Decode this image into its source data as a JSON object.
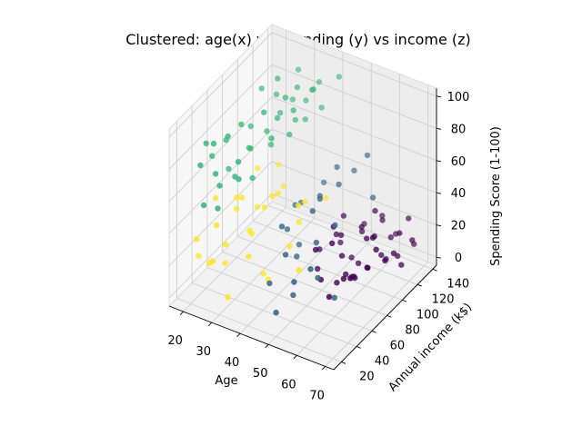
{
  "chart_data": {
    "type": "scatter",
    "projection": "3d",
    "title": "Clustered: age(x) vs spending (y) vs income (z)",
    "xlabel": "Age",
    "ylabel": "Annual income (k$)",
    "zlabel": "Spending Score (1-100)",
    "xlim": [
      15,
      73
    ],
    "ylim": [
      10,
      145
    ],
    "zlim": [
      -5,
      105
    ],
    "xticks": [
      "20",
      "30",
      "40",
      "50",
      "60",
      "70"
    ],
    "yticks": [
      "20",
      "40",
      "60",
      "80",
      "100",
      "120",
      "140"
    ],
    "zticks": [
      "0",
      "20",
      "40",
      "60",
      "80",
      "100"
    ],
    "grid": true,
    "legend": "none",
    "colors": {
      "cluster0": "#440154",
      "cluster1": "#3b6a8c",
      "cluster2": "#35b779",
      "cluster3": "#fde725"
    },
    "series": [
      {
        "cluster": 0,
        "points": [
          [
            58,
            70,
            10
          ],
          [
            62,
            75,
            14
          ],
          [
            66,
            80,
            20
          ],
          [
            60,
            85,
            8
          ],
          [
            55,
            88,
            16
          ],
          [
            63,
            92,
            12
          ],
          [
            68,
            96,
            18
          ],
          [
            52,
            98,
            22
          ],
          [
            57,
            102,
            6
          ],
          [
            64,
            106,
            14
          ],
          [
            70,
            110,
            10
          ],
          [
            60,
            112,
            20
          ],
          [
            54,
            118,
            16
          ],
          [
            66,
            120,
            8
          ],
          [
            62,
            126,
            14
          ],
          [
            58,
            130,
            20
          ],
          [
            68,
            134,
            10
          ],
          [
            56,
            137,
            18
          ],
          [
            50,
            72,
            24
          ],
          [
            48,
            82,
            6
          ],
          [
            46,
            92,
            12
          ],
          [
            65,
            138,
            22
          ],
          [
            61,
            98,
            26
          ],
          [
            53,
            108,
            4
          ],
          [
            67,
            88,
            28
          ],
          [
            59,
            78,
            12
          ],
          [
            49,
            103,
            18
          ],
          [
            63,
            116,
            6
          ],
          [
            57,
            124,
            28
          ],
          [
            69,
            128,
            16
          ],
          [
            51,
            132,
            12
          ],
          [
            55,
            75,
            30
          ],
          [
            62,
            64,
            18
          ],
          [
            58,
            60,
            6
          ],
          [
            66,
            58,
            24
          ],
          [
            54,
            64,
            12
          ],
          [
            70,
            100,
            22
          ],
          [
            47,
            120,
            20
          ],
          [
            60,
            140,
            8
          ],
          [
            64,
            95,
            30
          ],
          [
            52,
            88,
            32
          ],
          [
            68,
            115,
            26
          ],
          [
            56,
            110,
            24
          ],
          [
            48,
            112,
            8
          ],
          [
            59,
            90,
            4
          ]
        ]
      },
      {
        "cluster": 1,
        "points": [
          [
            50,
            20,
            10
          ],
          [
            55,
            25,
            30
          ],
          [
            45,
            30,
            20
          ],
          [
            60,
            28,
            40
          ],
          [
            52,
            35,
            15
          ],
          [
            48,
            40,
            35
          ],
          [
            58,
            45,
            25
          ],
          [
            44,
            50,
            45
          ],
          [
            62,
            52,
            12
          ],
          [
            54,
            58,
            38
          ],
          [
            46,
            62,
            22
          ],
          [
            50,
            68,
            50
          ],
          [
            40,
            72,
            30
          ],
          [
            56,
            75,
            42
          ],
          [
            42,
            80,
            18
          ],
          [
            48,
            85,
            48
          ],
          [
            38,
            90,
            35
          ],
          [
            52,
            95,
            55
          ],
          [
            44,
            100,
            40
          ],
          [
            36,
            105,
            28
          ],
          [
            60,
            110,
            45
          ],
          [
            46,
            115,
            52
          ],
          [
            40,
            120,
            36
          ],
          [
            54,
            125,
            60
          ],
          [
            48,
            130,
            44
          ]
        ]
      },
      {
        "cluster": 2,
        "points": [
          [
            22,
            25,
            80
          ],
          [
            26,
            30,
            75
          ],
          [
            24,
            35,
            90
          ],
          [
            28,
            28,
            70
          ],
          [
            20,
            40,
            85
          ],
          [
            30,
            45,
            78
          ],
          [
            25,
            50,
            88
          ],
          [
            32,
            38,
            72
          ],
          [
            23,
            55,
            82
          ],
          [
            27,
            60,
            92
          ],
          [
            29,
            65,
            76
          ],
          [
            35,
            70,
            84
          ],
          [
            31,
            75,
            95
          ],
          [
            25,
            80,
            80
          ],
          [
            33,
            85,
            88
          ],
          [
            28,
            90,
            74
          ],
          [
            36,
            95,
            90
          ],
          [
            30,
            100,
            82
          ],
          [
            34,
            105,
            78
          ],
          [
            26,
            110,
            86
          ],
          [
            32,
            115,
            92
          ],
          [
            29,
            120,
            80
          ],
          [
            35,
            125,
            88
          ],
          [
            31,
            130,
            76
          ],
          [
            27,
            135,
            90
          ],
          [
            33,
            140,
            84
          ],
          [
            30,
            18,
            62
          ],
          [
            24,
            22,
            58
          ],
          [
            28,
            48,
            66
          ],
          [
            34,
            92,
            98
          ],
          [
            38,
            112,
            96
          ],
          [
            22,
            62,
            60
          ],
          [
            36,
            132,
            74
          ],
          [
            32,
            56,
            64
          ],
          [
            26,
            74,
            70
          ],
          [
            30,
            88,
            68
          ],
          [
            34,
            118,
            72
          ],
          [
            28,
            104,
            100
          ],
          [
            24,
            98,
            94
          ],
          [
            37,
            86,
            80
          ],
          [
            40,
            140,
            92
          ],
          [
            21,
            44,
            76
          ]
        ]
      },
      {
        "cluster": 3,
        "points": [
          [
            20,
            30,
            20
          ],
          [
            25,
            35,
            40
          ],
          [
            30,
            28,
            35
          ],
          [
            35,
            40,
            25
          ],
          [
            22,
            45,
            50
          ],
          [
            28,
            50,
            45
          ],
          [
            32,
            55,
            30
          ],
          [
            38,
            60,
            55
          ],
          [
            24,
            65,
            42
          ],
          [
            30,
            70,
            38
          ],
          [
            36,
            75,
            48
          ],
          [
            42,
            80,
            32
          ],
          [
            26,
            85,
            52
          ],
          [
            34,
            90,
            44
          ],
          [
            40,
            95,
            36
          ],
          [
            46,
            100,
            40
          ],
          [
            28,
            105,
            46
          ],
          [
            44,
            60,
            28
          ],
          [
            50,
            50,
            22
          ],
          [
            38,
            30,
            48
          ],
          [
            33,
            20,
            8
          ],
          [
            27,
            18,
            26
          ],
          [
            21,
            24,
            34
          ],
          [
            40,
            42,
            58
          ],
          [
            29,
            15,
            30
          ],
          [
            45,
            68,
            50
          ],
          [
            31,
            46,
            56
          ],
          [
            37,
            52,
            10
          ],
          [
            43,
            36,
            18
          ],
          [
            23,
            54,
            6
          ]
        ]
      }
    ]
  }
}
